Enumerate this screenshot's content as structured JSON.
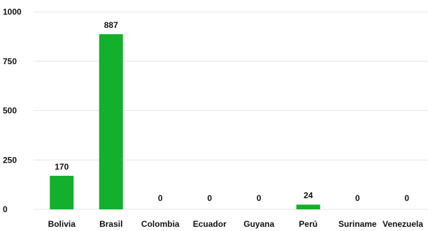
{
  "chart_data": {
    "type": "bar",
    "title": "",
    "xlabel": "",
    "ylabel": "",
    "categories": [
      "Bolivia",
      "Brasil",
      "Colombia",
      "Ecuador",
      "Guyana",
      "Perú",
      "Suriname",
      "Venezuela"
    ],
    "values": [
      170,
      887,
      0,
      0,
      0,
      24,
      0,
      0
    ],
    "ylim": [
      0,
      1000
    ],
    "yticks": [
      0,
      250,
      500,
      750,
      1000
    ],
    "grid": true,
    "legend": "none",
    "bar_color": "#12b02c",
    "data_labels": true
  }
}
